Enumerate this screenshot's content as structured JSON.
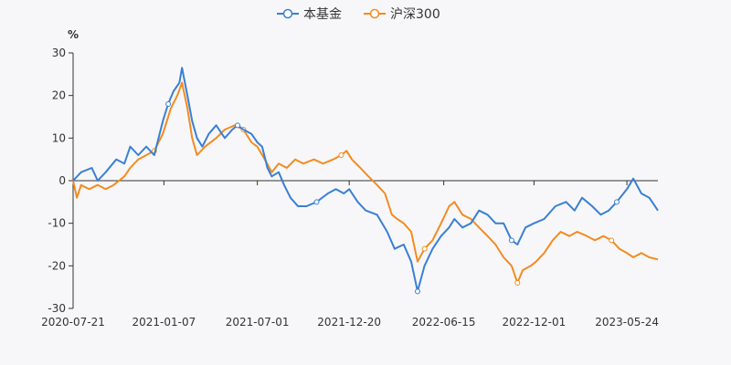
{
  "chart_data": {
    "type": "line",
    "unit": "%",
    "ylim": [
      -30,
      30
    ],
    "yticks": [
      30,
      20,
      10,
      0,
      -10,
      -20,
      -30
    ],
    "x_start": "2020-07-21",
    "x_end": "2023-07-21",
    "xticks": [
      "2020-07-21",
      "2021-01-07",
      "2021-07-01",
      "2021-12-20",
      "2022-06-15",
      "2022-12-01",
      "2023-05-24"
    ],
    "legend_position": "top-center",
    "series": [
      {
        "name": "本基金",
        "color": "#3a7fd5",
        "points": [
          [
            "2020-07-21",
            0
          ],
          [
            "2020-08-05",
            2
          ],
          [
            "2020-08-25",
            3
          ],
          [
            "2020-09-05",
            0
          ],
          [
            "2020-09-20",
            2
          ],
          [
            "2020-10-10",
            5
          ],
          [
            "2020-10-25",
            4
          ],
          [
            "2020-11-05",
            8
          ],
          [
            "2020-11-20",
            6
          ],
          [
            "2020-12-05",
            8
          ],
          [
            "2020-12-20",
            6
          ],
          [
            "2021-01-05",
            14
          ],
          [
            "2021-01-15",
            18
          ],
          [
            "2021-01-25",
            21
          ],
          [
            "2021-02-05",
            23
          ],
          [
            "2021-02-10",
            26.5
          ],
          [
            "2021-02-20",
            20
          ],
          [
            "2021-03-01",
            14
          ],
          [
            "2021-03-10",
            10
          ],
          [
            "2021-03-20",
            8
          ],
          [
            "2021-04-01",
            11
          ],
          [
            "2021-04-15",
            13
          ],
          [
            "2021-05-01",
            10
          ],
          [
            "2021-05-15",
            12
          ],
          [
            "2021-05-25",
            13
          ],
          [
            "2021-06-05",
            12
          ],
          [
            "2021-06-20",
            11
          ],
          [
            "2021-07-01",
            9
          ],
          [
            "2021-07-10",
            8
          ],
          [
            "2021-07-20",
            3
          ],
          [
            "2021-07-28",
            1
          ],
          [
            "2021-08-10",
            2
          ],
          [
            "2021-08-20",
            -1
          ],
          [
            "2021-09-01",
            -4
          ],
          [
            "2021-09-15",
            -6
          ],
          [
            "2021-10-01",
            -6
          ],
          [
            "2021-10-20",
            -5
          ],
          [
            "2021-11-10",
            -3
          ],
          [
            "2021-11-25",
            -2
          ],
          [
            "2021-12-10",
            -3
          ],
          [
            "2021-12-20",
            -2
          ],
          [
            "2022-01-05",
            -5
          ],
          [
            "2022-01-20",
            -7
          ],
          [
            "2022-02-10",
            -8
          ],
          [
            "2022-03-01",
            -12
          ],
          [
            "2022-03-15",
            -16
          ],
          [
            "2022-04-01",
            -15
          ],
          [
            "2022-04-15",
            -19
          ],
          [
            "2022-04-27",
            -26
          ],
          [
            "2022-05-10",
            -20
          ],
          [
            "2022-05-25",
            -16
          ],
          [
            "2022-06-10",
            -13
          ],
          [
            "2022-06-25",
            -11
          ],
          [
            "2022-07-05",
            -9
          ],
          [
            "2022-07-20",
            -11
          ],
          [
            "2022-08-05",
            -10
          ],
          [
            "2022-08-20",
            -7
          ],
          [
            "2022-09-05",
            -8
          ],
          [
            "2022-09-20",
            -10
          ],
          [
            "2022-10-05",
            -10
          ],
          [
            "2022-10-20",
            -14
          ],
          [
            "2022-10-31",
            -15
          ],
          [
            "2022-11-15",
            -11
          ],
          [
            "2022-12-01",
            -10
          ],
          [
            "2022-12-20",
            -9
          ],
          [
            "2023-01-10",
            -6
          ],
          [
            "2023-01-30",
            -5
          ],
          [
            "2023-02-15",
            -7
          ],
          [
            "2023-03-01",
            -4
          ],
          [
            "2023-03-20",
            -6
          ],
          [
            "2023-04-05",
            -8
          ],
          [
            "2023-04-20",
            -7
          ],
          [
            "2023-05-05",
            -5
          ],
          [
            "2023-05-24",
            -2
          ],
          [
            "2023-06-05",
            0.5
          ],
          [
            "2023-06-20",
            -3
          ],
          [
            "2023-07-05",
            -4
          ],
          [
            "2023-07-21",
            -7
          ]
        ]
      },
      {
        "name": "沪深300",
        "color": "#f38b21",
        "points": [
          [
            "2020-07-21",
            0
          ],
          [
            "2020-07-28",
            -4
          ],
          [
            "2020-08-05",
            -1
          ],
          [
            "2020-08-20",
            -2
          ],
          [
            "2020-09-05",
            -1
          ],
          [
            "2020-09-20",
            -2
          ],
          [
            "2020-10-05",
            -1
          ],
          [
            "2020-10-15",
            0
          ],
          [
            "2020-10-25",
            1
          ],
          [
            "2020-11-05",
            3
          ],
          [
            "2020-11-20",
            5
          ],
          [
            "2020-12-05",
            6
          ],
          [
            "2020-12-20",
            7
          ],
          [
            "2021-01-05",
            11
          ],
          [
            "2021-01-20",
            17
          ],
          [
            "2021-02-01",
            20
          ],
          [
            "2021-02-10",
            23
          ],
          [
            "2021-02-20",
            17
          ],
          [
            "2021-03-01",
            10
          ],
          [
            "2021-03-10",
            6
          ],
          [
            "2021-03-25",
            8
          ],
          [
            "2021-04-15",
            10
          ],
          [
            "2021-05-01",
            12
          ],
          [
            "2021-05-20",
            13
          ],
          [
            "2021-06-05",
            12
          ],
          [
            "2021-06-20",
            9
          ],
          [
            "2021-07-01",
            8
          ],
          [
            "2021-07-15",
            5
          ],
          [
            "2021-07-28",
            2
          ],
          [
            "2021-08-10",
            4
          ],
          [
            "2021-08-25",
            3
          ],
          [
            "2021-09-10",
            5
          ],
          [
            "2021-09-25",
            4
          ],
          [
            "2021-10-15",
            5
          ],
          [
            "2021-11-01",
            4
          ],
          [
            "2021-11-20",
            5
          ],
          [
            "2021-12-05",
            6
          ],
          [
            "2021-12-15",
            7
          ],
          [
            "2021-12-25",
            5
          ],
          [
            "2022-01-10",
            3
          ],
          [
            "2022-01-25",
            1
          ],
          [
            "2022-02-10",
            -1
          ],
          [
            "2022-02-25",
            -3
          ],
          [
            "2022-03-10",
            -8
          ],
          [
            "2022-03-20",
            -9
          ],
          [
            "2022-04-01",
            -10
          ],
          [
            "2022-04-15",
            -12
          ],
          [
            "2022-04-27",
            -19
          ],
          [
            "2022-05-10",
            -16
          ],
          [
            "2022-05-25",
            -14
          ],
          [
            "2022-06-10",
            -10
          ],
          [
            "2022-06-25",
            -6
          ],
          [
            "2022-07-05",
            -5
          ],
          [
            "2022-07-20",
            -8
          ],
          [
            "2022-08-05",
            -9
          ],
          [
            "2022-08-20",
            -11
          ],
          [
            "2022-09-05",
            -13
          ],
          [
            "2022-09-20",
            -15
          ],
          [
            "2022-10-05",
            -18
          ],
          [
            "2022-10-20",
            -20
          ],
          [
            "2022-10-31",
            -24
          ],
          [
            "2022-11-10",
            -21
          ],
          [
            "2022-11-25",
            -20
          ],
          [
            "2022-12-05",
            -19
          ],
          [
            "2022-12-20",
            -17
          ],
          [
            "2023-01-05",
            -14
          ],
          [
            "2023-01-20",
            -12
          ],
          [
            "2023-02-05",
            -13
          ],
          [
            "2023-02-20",
            -12
          ],
          [
            "2023-03-10",
            -13
          ],
          [
            "2023-03-25",
            -14
          ],
          [
            "2023-04-10",
            -13
          ],
          [
            "2023-04-25",
            -14
          ],
          [
            "2023-05-10",
            -16
          ],
          [
            "2023-05-24",
            -17
          ],
          [
            "2023-06-05",
            -18
          ],
          [
            "2023-06-20",
            -17
          ],
          [
            "2023-07-05",
            -18
          ],
          [
            "2023-07-21",
            -18.5
          ]
        ]
      }
    ]
  }
}
